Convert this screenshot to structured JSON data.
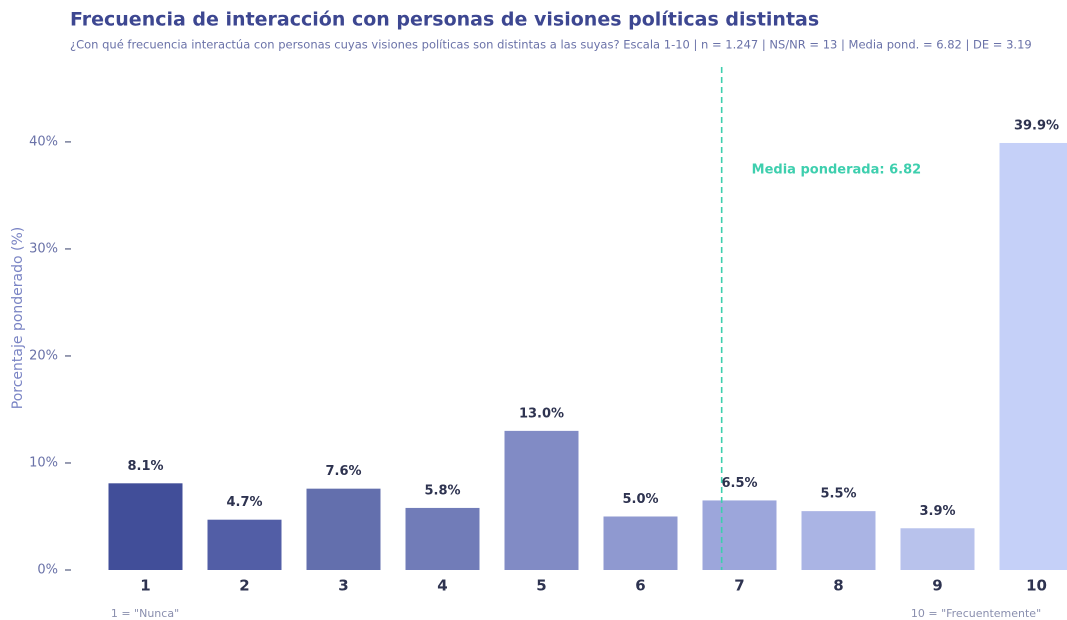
{
  "chart_data": {
    "type": "bar",
    "title": "Frecuencia de interacción con personas de visiones políticas distintas",
    "subtitle": "¿Con qué frecuencia interactúa con personas cuyas visiones políticas son distintas a las suyas? Escala 1-10 | n = 1.247 | NS/NR = 13 | Media pond. = 6.82 | DE = 3.19",
    "y_label": "Porcentaje ponderado (%)",
    "categories": [
      "1",
      "2",
      "3",
      "4",
      "5",
      "6",
      "7",
      "8",
      "9",
      "10"
    ],
    "values": [
      8.1,
      4.7,
      7.6,
      5.8,
      13.0,
      5.0,
      6.5,
      5.5,
      3.9,
      39.9
    ],
    "value_labels": [
      "8.1%",
      "4.7%",
      "7.6%",
      "5.8%",
      "13.0%",
      "5.0%",
      "6.5%",
      "5.5%",
      "3.9%",
      "39.9%"
    ],
    "colors": [
      "#414e99",
      "#525ea6",
      "#636fad",
      "#717cb8",
      "#818bc5",
      "#8f99d0",
      "#9ca6db",
      "#aab4e4",
      "#b8c2ec",
      "#c5d0f8"
    ],
    "ylim": [
      0,
      47
    ],
    "yticks": [
      {
        "value": 0,
        "label": "0%"
      },
      {
        "value": 10,
        "label": "10%"
      },
      {
        "value": 20,
        "label": "20%"
      },
      {
        "value": 30,
        "label": "30%"
      },
      {
        "value": 40,
        "label": "40%"
      }
    ],
    "mean": 6.82,
    "mean_label": "Media ponderada: 6.82",
    "mean_color": "#3ecfae",
    "note_left": "1 = \"Nunca\"",
    "note_right": "10 = \"Frecuentemente\""
  }
}
